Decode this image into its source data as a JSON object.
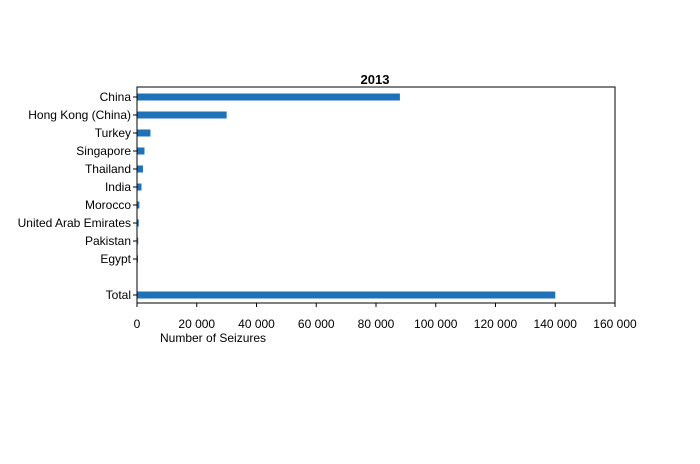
{
  "chart_data": {
    "type": "bar",
    "orientation": "horizontal",
    "title": "2013",
    "xlabel": "Number of Seizures",
    "ylabel": "",
    "xlim": [
      0,
      160000
    ],
    "xticks": [
      0,
      20000,
      40000,
      60000,
      80000,
      100000,
      120000,
      140000,
      160000
    ],
    "xtick_labels": [
      "0",
      "20 000",
      "40 000",
      "60 000",
      "80 000",
      "100 000",
      "120 000",
      "140 000",
      "160 000"
    ],
    "categories": [
      "China",
      "Hong Kong (China)",
      "Turkey",
      "Singapore",
      "Thailand",
      "India",
      "Morocco",
      "United Arab Emirates",
      "Pakistan",
      "Egypt",
      "",
      "Total"
    ],
    "values": [
      88000,
      30000,
      4500,
      2500,
      2000,
      1500,
      800,
      600,
      400,
      200,
      null,
      140000
    ],
    "bar_color": "#1f72b8",
    "grid": false,
    "legend": "none"
  }
}
